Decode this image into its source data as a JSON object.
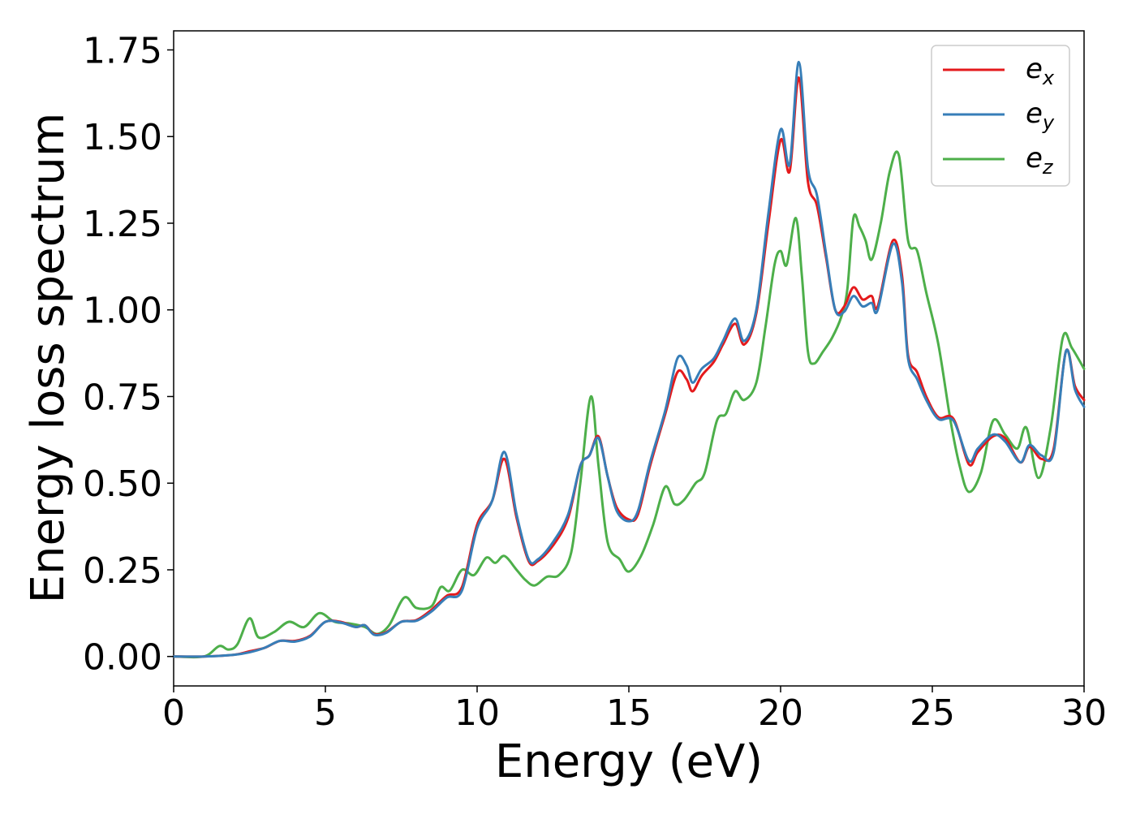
{
  "chart_data": {
    "type": "line",
    "title": "",
    "xlabel": "Energy (eV)",
    "ylabel": "Energy loss spectrum",
    "xlim": [
      0,
      30
    ],
    "ylim": [
      -0.085,
      1.805
    ],
    "xticks": [
      0,
      5,
      10,
      15,
      20,
      25,
      30
    ],
    "yticks": [
      0.0,
      0.25,
      0.5,
      0.75,
      1.0,
      1.25,
      1.5,
      1.75
    ],
    "xtick_labels": [
      "0",
      "5",
      "10",
      "15",
      "20",
      "25",
      "30"
    ],
    "ytick_labels": [
      "0.00",
      "0.25",
      "0.50",
      "0.75",
      "1.00",
      "1.25",
      "1.50",
      "1.75"
    ],
    "grid": false,
    "legend_position": "top-right",
    "series": [
      {
        "name": "e_x",
        "legend_base": "e",
        "legend_sub": "x",
        "color": "#e41a1c",
        "points": [
          [
            0,
            0.0
          ],
          [
            1,
            0.0
          ],
          [
            2,
            0.005
          ],
          [
            2.5,
            0.015
          ],
          [
            3,
            0.025
          ],
          [
            3.5,
            0.045
          ],
          [
            4,
            0.045
          ],
          [
            4.5,
            0.06
          ],
          [
            5,
            0.1
          ],
          [
            5.5,
            0.1
          ],
          [
            6,
            0.085
          ],
          [
            6.3,
            0.09
          ],
          [
            6.6,
            0.065
          ],
          [
            7,
            0.07
          ],
          [
            7.5,
            0.1
          ],
          [
            8,
            0.105
          ],
          [
            8.5,
            0.135
          ],
          [
            9,
            0.175
          ],
          [
            9.5,
            0.2
          ],
          [
            10,
            0.38
          ],
          [
            10.5,
            0.45
          ],
          [
            10.9,
            0.57
          ],
          [
            11.3,
            0.4
          ],
          [
            11.7,
            0.275
          ],
          [
            12,
            0.275
          ],
          [
            12.5,
            0.32
          ],
          [
            13,
            0.4
          ],
          [
            13.4,
            0.55
          ],
          [
            13.7,
            0.58
          ],
          [
            14,
            0.635
          ],
          [
            14.3,
            0.52
          ],
          [
            14.6,
            0.43
          ],
          [
            15,
            0.395
          ],
          [
            15.3,
            0.41
          ],
          [
            15.7,
            0.55
          ],
          [
            16.2,
            0.7
          ],
          [
            16.6,
            0.82
          ],
          [
            16.9,
            0.8
          ],
          [
            17.1,
            0.765
          ],
          [
            17.4,
            0.81
          ],
          [
            17.8,
            0.85
          ],
          [
            18.1,
            0.9
          ],
          [
            18.5,
            0.96
          ],
          [
            18.8,
            0.9
          ],
          [
            19.2,
            0.99
          ],
          [
            19.6,
            1.25
          ],
          [
            20,
            1.49
          ],
          [
            20.3,
            1.4
          ],
          [
            20.6,
            1.67
          ],
          [
            20.9,
            1.37
          ],
          [
            21.2,
            1.3
          ],
          [
            21.5,
            1.15
          ],
          [
            21.8,
            1.0
          ],
          [
            22.1,
            1.01
          ],
          [
            22.4,
            1.065
          ],
          [
            22.7,
            1.03
          ],
          [
            23,
            1.04
          ],
          [
            23.2,
            1.01
          ],
          [
            23.7,
            1.2
          ],
          [
            24,
            1.1
          ],
          [
            24.2,
            0.87
          ],
          [
            24.5,
            0.82
          ],
          [
            24.8,
            0.75
          ],
          [
            25.2,
            0.69
          ],
          [
            25.7,
            0.685
          ],
          [
            26.2,
            0.555
          ],
          [
            26.5,
            0.59
          ],
          [
            27,
            0.635
          ],
          [
            27.4,
            0.63
          ],
          [
            27.9,
            0.56
          ],
          [
            28.2,
            0.605
          ],
          [
            28.6,
            0.57
          ],
          [
            29,
            0.6
          ],
          [
            29.4,
            0.88
          ],
          [
            29.7,
            0.78
          ],
          [
            30,
            0.74
          ]
        ]
      },
      {
        "name": "e_y",
        "legend_base": "e",
        "legend_sub": "y",
        "color": "#377eb8",
        "points": [
          [
            0,
            0.0
          ],
          [
            1,
            0.0
          ],
          [
            2,
            0.005
          ],
          [
            2.5,
            0.012
          ],
          [
            3,
            0.025
          ],
          [
            3.5,
            0.045
          ],
          [
            4,
            0.043
          ],
          [
            4.5,
            0.058
          ],
          [
            5,
            0.1
          ],
          [
            5.5,
            0.098
          ],
          [
            6,
            0.085
          ],
          [
            6.3,
            0.09
          ],
          [
            6.6,
            0.063
          ],
          [
            7,
            0.068
          ],
          [
            7.5,
            0.1
          ],
          [
            8,
            0.103
          ],
          [
            8.5,
            0.13
          ],
          [
            9,
            0.17
          ],
          [
            9.5,
            0.19
          ],
          [
            10,
            0.37
          ],
          [
            10.5,
            0.45
          ],
          [
            10.9,
            0.59
          ],
          [
            11.3,
            0.41
          ],
          [
            11.7,
            0.28
          ],
          [
            12,
            0.28
          ],
          [
            12.5,
            0.33
          ],
          [
            13,
            0.41
          ],
          [
            13.4,
            0.55
          ],
          [
            13.7,
            0.58
          ],
          [
            14,
            0.63
          ],
          [
            14.3,
            0.52
          ],
          [
            14.6,
            0.42
          ],
          [
            15,
            0.39
          ],
          [
            15.3,
            0.42
          ],
          [
            15.7,
            0.56
          ],
          [
            16.2,
            0.71
          ],
          [
            16.6,
            0.86
          ],
          [
            16.9,
            0.84
          ],
          [
            17.1,
            0.79
          ],
          [
            17.4,
            0.83
          ],
          [
            17.8,
            0.86
          ],
          [
            18.1,
            0.91
          ],
          [
            18.5,
            0.975
          ],
          [
            18.8,
            0.91
          ],
          [
            19.2,
            1.0
          ],
          [
            19.6,
            1.28
          ],
          [
            20,
            1.52
          ],
          [
            20.3,
            1.42
          ],
          [
            20.6,
            1.715
          ],
          [
            20.9,
            1.41
          ],
          [
            21.2,
            1.33
          ],
          [
            21.5,
            1.16
          ],
          [
            21.8,
            1.0
          ],
          [
            22.1,
            0.995
          ],
          [
            22.4,
            1.04
          ],
          [
            22.7,
            1.01
          ],
          [
            23,
            1.02
          ],
          [
            23.2,
            1.0
          ],
          [
            23.7,
            1.19
          ],
          [
            24,
            1.08
          ],
          [
            24.2,
            0.86
          ],
          [
            24.5,
            0.8
          ],
          [
            24.8,
            0.74
          ],
          [
            25.2,
            0.685
          ],
          [
            25.7,
            0.68
          ],
          [
            26.2,
            0.565
          ],
          [
            26.5,
            0.6
          ],
          [
            27,
            0.64
          ],
          [
            27.4,
            0.62
          ],
          [
            27.9,
            0.56
          ],
          [
            28.2,
            0.61
          ],
          [
            28.6,
            0.58
          ],
          [
            29,
            0.59
          ],
          [
            29.4,
            0.88
          ],
          [
            29.7,
            0.77
          ],
          [
            30,
            0.72
          ]
        ]
      },
      {
        "name": "e_z",
        "legend_base": "e",
        "legend_sub": "z",
        "color": "#4daf4a",
        "points": [
          [
            0,
            0.0
          ],
          [
            1,
            0.0
          ],
          [
            1.5,
            0.03
          ],
          [
            1.8,
            0.02
          ],
          [
            2.1,
            0.035
          ],
          [
            2.5,
            0.11
          ],
          [
            2.8,
            0.055
          ],
          [
            3.3,
            0.07
          ],
          [
            3.8,
            0.1
          ],
          [
            4.3,
            0.085
          ],
          [
            4.8,
            0.125
          ],
          [
            5.3,
            0.1
          ],
          [
            5.8,
            0.095
          ],
          [
            6.3,
            0.085
          ],
          [
            6.7,
            0.065
          ],
          [
            7.1,
            0.09
          ],
          [
            7.6,
            0.17
          ],
          [
            8,
            0.14
          ],
          [
            8.5,
            0.145
          ],
          [
            8.8,
            0.2
          ],
          [
            9.1,
            0.19
          ],
          [
            9.5,
            0.25
          ],
          [
            9.9,
            0.235
          ],
          [
            10.3,
            0.285
          ],
          [
            10.6,
            0.27
          ],
          [
            10.9,
            0.29
          ],
          [
            11.3,
            0.25
          ],
          [
            11.6,
            0.22
          ],
          [
            11.9,
            0.205
          ],
          [
            12.3,
            0.23
          ],
          [
            12.7,
            0.235
          ],
          [
            13.1,
            0.3
          ],
          [
            13.4,
            0.5
          ],
          [
            13.75,
            0.75
          ],
          [
            14,
            0.55
          ],
          [
            14.3,
            0.33
          ],
          [
            14.7,
            0.28
          ],
          [
            15,
            0.245
          ],
          [
            15.4,
            0.29
          ],
          [
            15.8,
            0.38
          ],
          [
            16.2,
            0.49
          ],
          [
            16.5,
            0.44
          ],
          [
            16.8,
            0.45
          ],
          [
            17.2,
            0.5
          ],
          [
            17.5,
            0.53
          ],
          [
            17.9,
            0.68
          ],
          [
            18.2,
            0.7
          ],
          [
            18.5,
            0.765
          ],
          [
            18.8,
            0.74
          ],
          [
            19.2,
            0.79
          ],
          [
            19.5,
            0.95
          ],
          [
            19.8,
            1.13
          ],
          [
            20,
            1.17
          ],
          [
            20.2,
            1.13
          ],
          [
            20.5,
            1.265
          ],
          [
            20.7,
            1.1
          ],
          [
            20.9,
            0.88
          ],
          [
            21.1,
            0.845
          ],
          [
            21.4,
            0.88
          ],
          [
            21.7,
            0.92
          ],
          [
            22,
            0.98
          ],
          [
            22.2,
            1.06
          ],
          [
            22.4,
            1.265
          ],
          [
            22.6,
            1.24
          ],
          [
            22.8,
            1.2
          ],
          [
            23,
            1.145
          ],
          [
            23.3,
            1.25
          ],
          [
            23.6,
            1.4
          ],
          [
            23.9,
            1.445
          ],
          [
            24.2,
            1.2
          ],
          [
            24.5,
            1.17
          ],
          [
            24.8,
            1.05
          ],
          [
            25.2,
            0.9
          ],
          [
            25.6,
            0.68
          ],
          [
            25.9,
            0.55
          ],
          [
            26.2,
            0.475
          ],
          [
            26.6,
            0.53
          ],
          [
            27,
            0.68
          ],
          [
            27.4,
            0.64
          ],
          [
            27.8,
            0.6
          ],
          [
            28.1,
            0.66
          ],
          [
            28.5,
            0.515
          ],
          [
            28.9,
            0.66
          ],
          [
            29.3,
            0.92
          ],
          [
            29.6,
            0.89
          ],
          [
            30,
            0.83
          ]
        ]
      }
    ]
  }
}
